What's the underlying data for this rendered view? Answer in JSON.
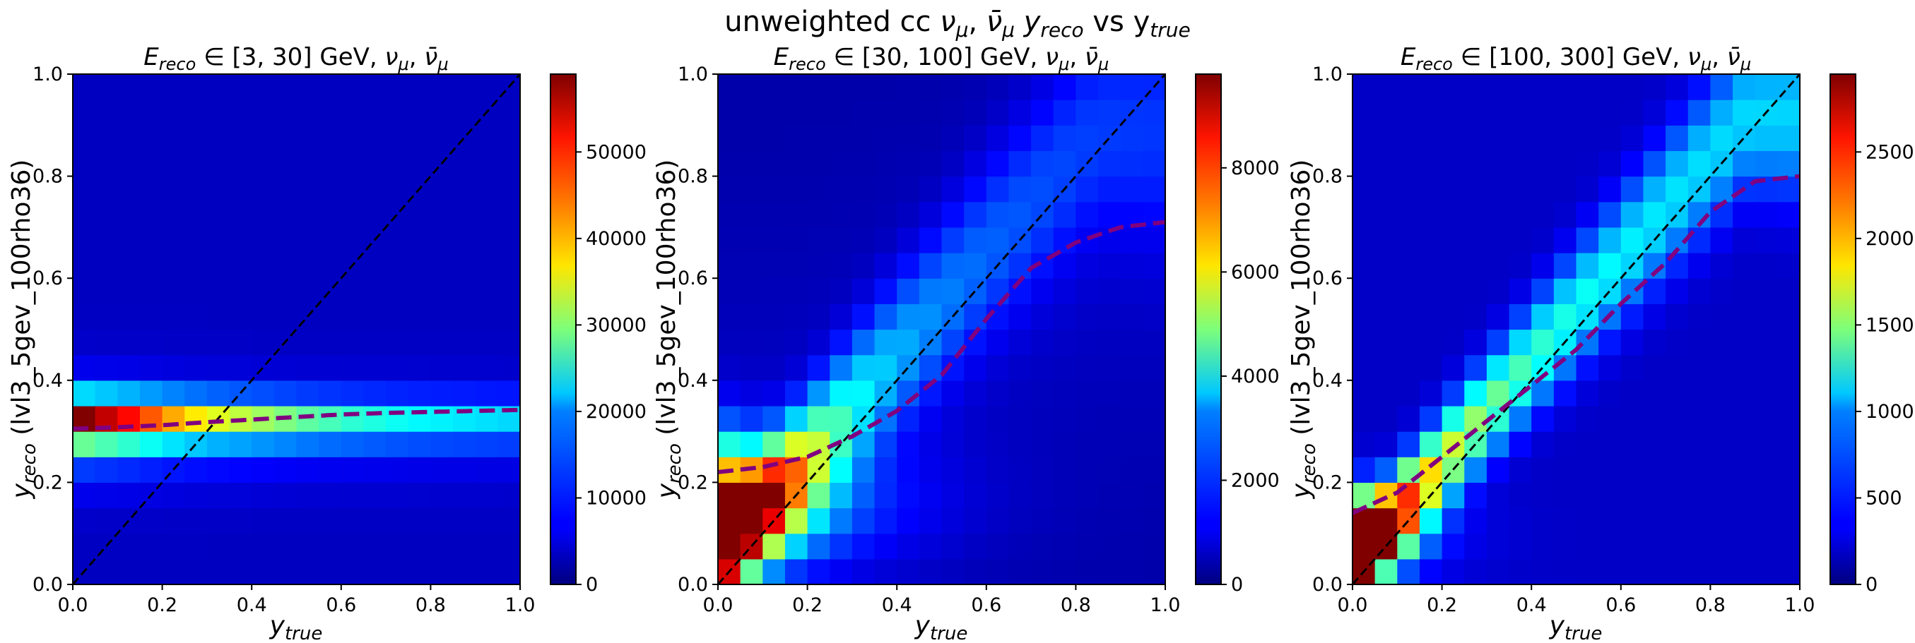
{
  "figure": {
    "suptitle": "unweighted cc νμ, ν̄μ yreco vs  ytrue",
    "suptitle_parts": {
      "pre": "unweighted cc ",
      "nu": "ν",
      "mu": "μ",
      "sep": ", ",
      "nubar": "ν̄",
      "mu2": "μ",
      "y1": " y",
      "reco": "reco",
      "vs": " vs  y",
      "true": "true"
    }
  },
  "colors": {
    "median_line": "#800080",
    "diagonal": "#000000",
    "colormap": "jet"
  },
  "chart_data": [
    {
      "type": "heatmap",
      "title": "Ereco ∈ [3, 30] GeV, νμ, ν̄μ",
      "title_parts": {
        "E": "E",
        "sub": "reco",
        "range": " ∈ [3, 30] GeV, ",
        "nu": "ν",
        "mu": "μ",
        "sep": ", ",
        "nubar": "ν̄",
        "mu2": "μ"
      },
      "xlabel": "ytrue",
      "ylabel": "yreco (lvl3_5gev_100rho36)",
      "xlim": [
        0,
        1
      ],
      "ylim": [
        0,
        1
      ],
      "xticks": [
        "0.0",
        "0.2",
        "0.4",
        "0.6",
        "0.8",
        "1.0"
      ],
      "yticks": [
        "0.0",
        "0.2",
        "0.4",
        "0.6",
        "0.8",
        "1.0"
      ],
      "bins": 20,
      "colorbar": {
        "min": 0,
        "max": 59000,
        "ticks": [
          "0",
          "10000",
          "20000",
          "30000",
          "40000",
          "50000"
        ],
        "tick_values": [
          0,
          10000,
          20000,
          30000,
          40000,
          50000
        ]
      },
      "peak_y": 0.32,
      "peak_values_by_xbin": [
        58000,
        54000,
        50000,
        45000,
        40000,
        36000,
        33000,
        31000,
        29000,
        27000,
        25000,
        23500,
        22000,
        21000,
        20000,
        19000,
        18500,
        18000,
        17500,
        17000
      ],
      "median_curve": {
        "x": [
          0.0,
          0.1,
          0.2,
          0.3,
          0.4,
          0.5,
          0.6,
          0.7,
          0.8,
          0.9,
          1.0
        ],
        "y": [
          0.305,
          0.308,
          0.312,
          0.318,
          0.323,
          0.328,
          0.333,
          0.336,
          0.338,
          0.34,
          0.342
        ]
      }
    },
    {
      "type": "heatmap",
      "title": "Ereco ∈ [30, 100] GeV, νμ, ν̄μ",
      "title_parts": {
        "E": "E",
        "sub": "reco",
        "range": " ∈ [30, 100] GeV, ",
        "nu": "ν",
        "mu": "μ",
        "sep": ", ",
        "nubar": "ν̄",
        "mu2": "μ"
      },
      "xlabel": "ytrue",
      "ylabel": "yreco (lvl3_5gev_100rho36)",
      "xlim": [
        0,
        1
      ],
      "ylim": [
        0,
        1
      ],
      "xticks": [
        "0.0",
        "0.2",
        "0.4",
        "0.6",
        "0.8",
        "1.0"
      ],
      "yticks": [
        "0.0",
        "0.2",
        "0.4",
        "0.6",
        "0.8",
        "1.0"
      ],
      "bins": 20,
      "colorbar": {
        "min": 0,
        "max": 9800,
        "ticks": [
          "0",
          "2000",
          "4000",
          "6000",
          "8000"
        ],
        "tick_values": [
          0,
          2000,
          4000,
          6000,
          8000
        ]
      },
      "median_curve": {
        "x": [
          0.0,
          0.1,
          0.2,
          0.3,
          0.4,
          0.5,
          0.6,
          0.7,
          0.8,
          0.9,
          1.0
        ],
        "y": [
          0.22,
          0.23,
          0.25,
          0.29,
          0.34,
          0.41,
          0.52,
          0.62,
          0.67,
          0.7,
          0.71
        ]
      }
    },
    {
      "type": "heatmap",
      "title": "Ereco ∈ [100, 300] GeV, νμ, ν̄μ",
      "title_parts": {
        "E": "E",
        "sub": "reco",
        "range": " ∈ [100, 300] GeV, ",
        "nu": "ν",
        "mu": "μ",
        "sep": ", ",
        "nubar": "ν̄",
        "mu2": "μ"
      },
      "xlabel": "ytrue",
      "ylabel": "yreco (lvl3_5gev_100rho36)",
      "xlim": [
        0,
        1
      ],
      "ylim": [
        0,
        1
      ],
      "xticks": [
        "0.0",
        "0.2",
        "0.4",
        "0.6",
        "0.8",
        "1.0"
      ],
      "yticks": [
        "0.0",
        "0.2",
        "0.4",
        "0.6",
        "0.8",
        "1.0"
      ],
      "bins": 20,
      "colorbar": {
        "min": 0,
        "max": 2950,
        "ticks": [
          "0",
          "500",
          "1000",
          "1500",
          "2000",
          "2500"
        ],
        "tick_values": [
          0,
          500,
          1000,
          1500,
          2000,
          2500
        ]
      },
      "median_curve": {
        "x": [
          0.0,
          0.1,
          0.2,
          0.3,
          0.4,
          0.5,
          0.6,
          0.7,
          0.8,
          0.9,
          1.0
        ],
        "y": [
          0.14,
          0.18,
          0.25,
          0.32,
          0.39,
          0.46,
          0.55,
          0.63,
          0.73,
          0.79,
          0.8
        ]
      }
    }
  ]
}
